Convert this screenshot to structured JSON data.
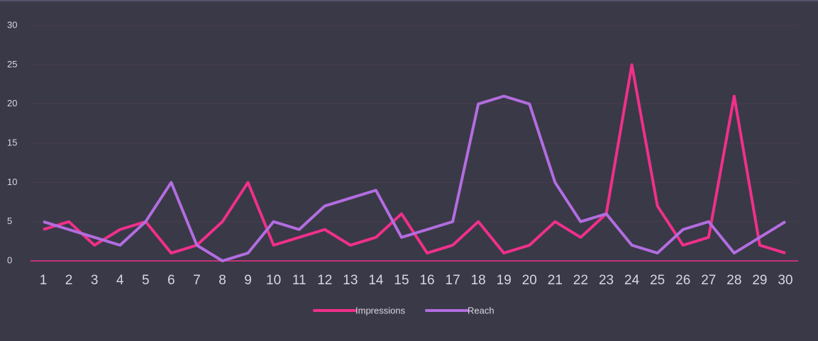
{
  "chart_data": {
    "type": "line",
    "categories": [
      "1",
      "2",
      "3",
      "4",
      "5",
      "6",
      "7",
      "8",
      "9",
      "10",
      "11",
      "12",
      "13",
      "14",
      "15",
      "16",
      "17",
      "18",
      "19",
      "20",
      "21",
      "22",
      "23",
      "24",
      "25",
      "26",
      "27",
      "28",
      "29",
      "30"
    ],
    "series": [
      {
        "name": "Impressions",
        "color": "#f0308a",
        "values": [
          4,
          5,
          2,
          4,
          5,
          1,
          2,
          5,
          10,
          2,
          3,
          4,
          2,
          3,
          6,
          1,
          2,
          5,
          1,
          2,
          5,
          3,
          6,
          25,
          7,
          2,
          3,
          21,
          2,
          1
        ]
      },
      {
        "name": "Reach",
        "color": "#b26de0",
        "values": [
          5,
          4,
          3,
          2,
          5,
          10,
          2,
          0,
          1,
          5,
          4,
          7,
          8,
          9,
          3,
          4,
          5,
          20,
          21,
          20,
          10,
          5,
          6,
          2,
          1,
          4,
          5,
          1,
          3,
          5
        ]
      }
    ],
    "ylim": [
      0,
      30
    ],
    "yticks": [
      0,
      5,
      10,
      15,
      20,
      25,
      30
    ],
    "grid": true,
    "legend": "bottom"
  }
}
